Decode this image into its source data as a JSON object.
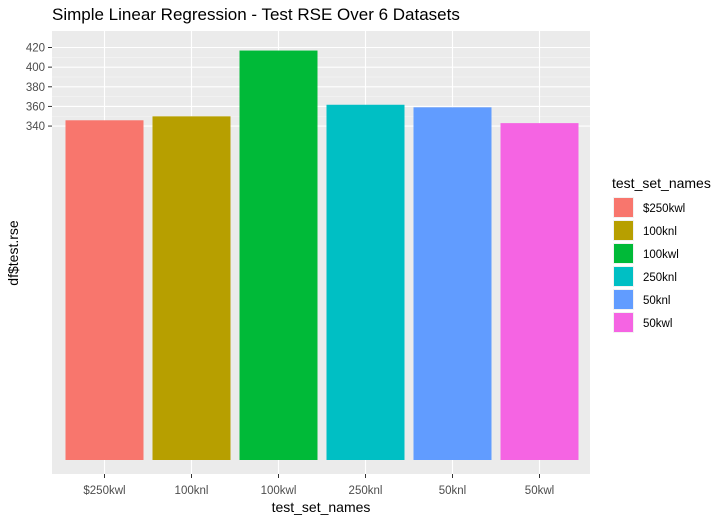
{
  "chart_data": {
    "type": "bar",
    "title": "Simple Linear Regression - Test RSE Over 6 Datasets",
    "xlabel": "test_set_names",
    "ylabel": "df$test.rse",
    "categories": [
      "$250kwl",
      "100knl",
      "100kwl",
      "250knl",
      "50knl",
      "50kwl"
    ],
    "values": [
      345.9,
      349.9,
      416.9,
      361.7,
      359.1,
      343.0
    ],
    "colors": [
      "#F8766D",
      "#B79F00",
      "#00BA38",
      "#00BFC4",
      "#619CFF",
      "#F564E3"
    ],
    "y_ticks": [
      340,
      360,
      380,
      400,
      420
    ],
    "ylim": [
      0,
      428
    ],
    "grid": true,
    "legend": {
      "title": "test_set_names",
      "position": "right",
      "entries": [
        "$250kwl",
        "100knl",
        "100kwl",
        "250knl",
        "50knl",
        "50kwl"
      ]
    }
  }
}
